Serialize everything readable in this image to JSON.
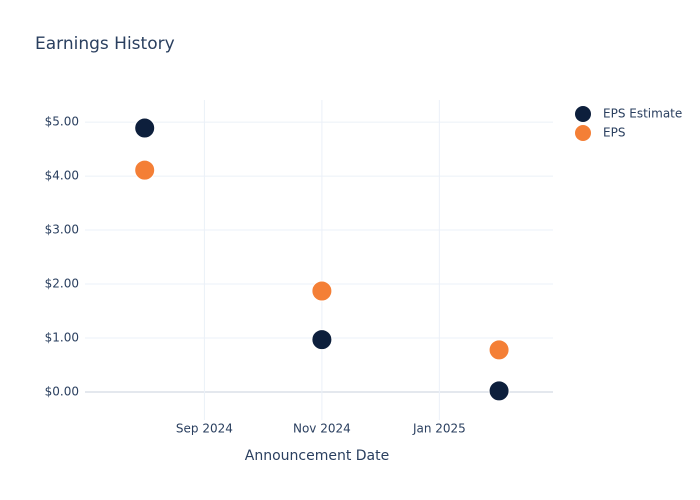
{
  "chart_data": {
    "type": "scatter",
    "title": "Earnings History",
    "x_label": "Announcement Date",
    "x": [
      "2024-08",
      "2024-11",
      "2025-02"
    ],
    "series": [
      {
        "name": "EPS Estimate",
        "color": "#0d1f3c",
        "values": [
          4.89,
          0.97,
          0.02
        ]
      },
      {
        "name": "EPS",
        "color": "#f47f36",
        "values": [
          4.11,
          1.87,
          0.78
        ]
      }
    ],
    "xlim": [
      "2024-07",
      "2025-03"
    ],
    "xticks": [
      {
        "value": "2024-09",
        "label": "Sep 2024"
      },
      {
        "value": "2024-11",
        "label": "Nov 2024"
      },
      {
        "value": "2025-01",
        "label": "Jan 2025"
      }
    ],
    "ylim": [
      -0.52,
      5.41
    ],
    "yticks": [
      {
        "value": 0,
        "label": "$0.00"
      },
      {
        "value": 1,
        "label": "$1.00"
      },
      {
        "value": 2,
        "label": "$2.00"
      },
      {
        "value": 3,
        "label": "$3.00"
      },
      {
        "value": 4,
        "label": "$4.00"
      },
      {
        "value": 5,
        "label": "$5.00"
      }
    ],
    "grid": true,
    "legend": "right"
  }
}
